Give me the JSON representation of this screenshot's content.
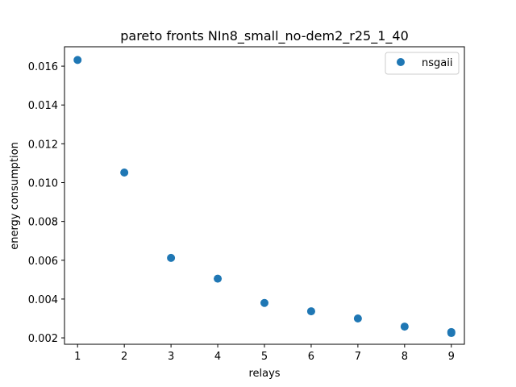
{
  "chart_data": {
    "type": "scatter",
    "title": "pareto fronts NIn8_small_no-dem2_r25_1_40",
    "xlabel": "relays",
    "ylabel": "energy consumption",
    "xlim": [
      0.72,
      9.28
    ],
    "ylim": [
      0.00167,
      0.017
    ],
    "xticks": [
      1,
      2,
      3,
      4,
      5,
      6,
      7,
      8,
      9
    ],
    "xtick_labels": [
      "1",
      "2",
      "3",
      "4",
      "5",
      "6",
      "7",
      "8",
      "9"
    ],
    "yticks": [
      0.002,
      0.004,
      0.006,
      0.008,
      0.01,
      0.012,
      0.014,
      0.016
    ],
    "ytick_labels": [
      "0.002",
      "0.004",
      "0.006",
      "0.008",
      "0.010",
      "0.012",
      "0.014",
      "0.016"
    ],
    "grid": false,
    "legend": {
      "position": "upper right",
      "entries": [
        "nsgaii"
      ]
    },
    "series": [
      {
        "name": "nsgaii",
        "color": "#1f77b4",
        "points": [
          {
            "x": 1,
            "y": 0.01632
          },
          {
            "x": 2,
            "y": 0.01052
          },
          {
            "x": 3,
            "y": 0.00612
          },
          {
            "x": 4,
            "y": 0.00505
          },
          {
            "x": 5,
            "y": 0.0038
          },
          {
            "x": 6,
            "y": 0.00337
          },
          {
            "x": 7,
            "y": 0.003
          },
          {
            "x": 8,
            "y": 0.00258
          },
          {
            "x": 9,
            "y": 0.0023
          },
          {
            "x": 9,
            "y": 0.00225
          }
        ]
      }
    ]
  }
}
